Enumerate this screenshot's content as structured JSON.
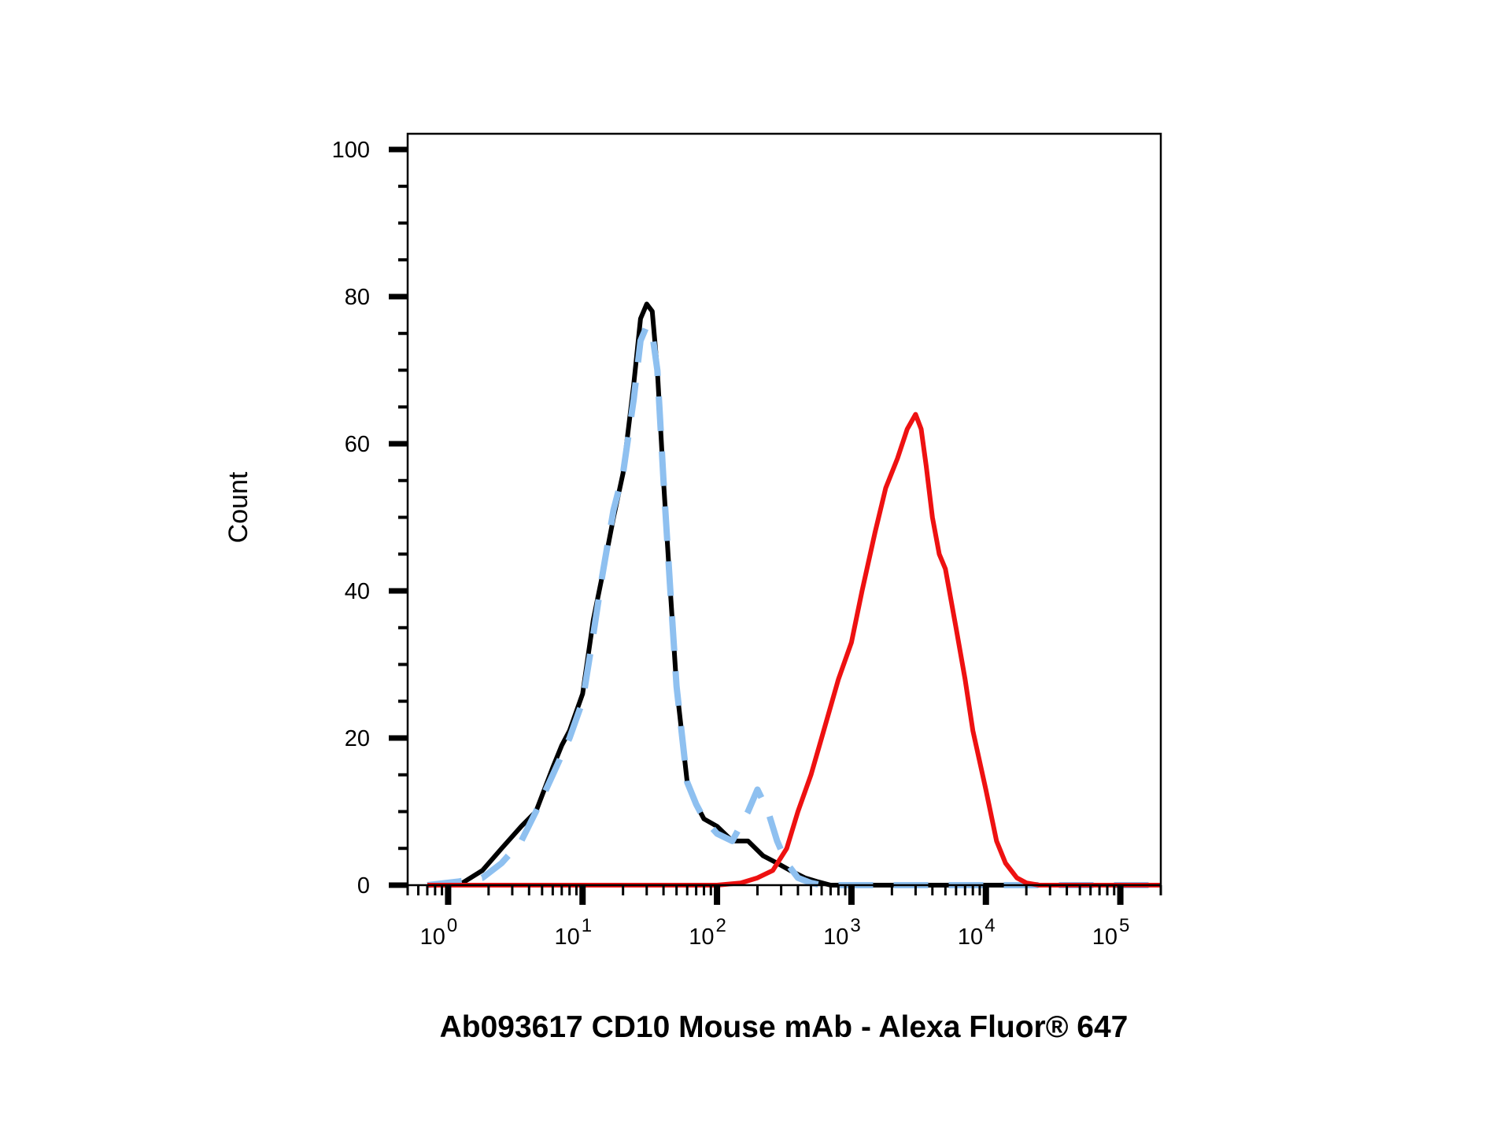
{
  "chart_data": {
    "type": "line",
    "title": "",
    "xlabel": "Ab093617 CD10 Mouse mAb - Alexa Fluor® 647",
    "ylabel": "Count",
    "xscale": "log",
    "xlim": [
      0.5,
      200000
    ],
    "ylim": [
      0,
      100
    ],
    "grid": false,
    "y_ticks": [
      0,
      20,
      40,
      60,
      80,
      100
    ],
    "x_ticks": [
      {
        "base": "10",
        "exp": "0",
        "value": 1
      },
      {
        "base": "10",
        "exp": "1",
        "value": 10
      },
      {
        "base": "10",
        "exp": "2",
        "value": 100
      },
      {
        "base": "10",
        "exp": "3",
        "value": 1000
      },
      {
        "base": "10",
        "exp": "4",
        "value": 10000
      },
      {
        "base": "10",
        "exp": "5",
        "value": 100000
      }
    ],
    "series": [
      {
        "color": "#000000",
        "style": "solid",
        "x": [
          0.7,
          1.2,
          1.8,
          2.5,
          3.5,
          4.5,
          6,
          7,
          8,
          10,
          12,
          14,
          17,
          20,
          24,
          27,
          30,
          33,
          36,
          40,
          45,
          50,
          60,
          70,
          80,
          100,
          130,
          170,
          220,
          280,
          350,
          450,
          550,
          700,
          1000,
          200000
        ],
        "y": [
          0,
          0,
          2,
          5,
          8,
          10,
          16,
          19,
          21,
          26,
          36,
          42,
          50,
          56,
          68,
          77,
          79,
          78,
          70,
          55,
          40,
          27,
          14,
          11,
          9,
          8,
          6,
          6,
          4,
          3,
          2,
          1,
          0.5,
          0,
          0,
          0
        ]
      },
      {
        "color": "#8ec0f0",
        "style": "dashed",
        "x": [
          0.7,
          1.2,
          1.8,
          2.5,
          3.5,
          4.5,
          6,
          8,
          10,
          12,
          14,
          17,
          20,
          24,
          27,
          30,
          33,
          36,
          40,
          45,
          50,
          60,
          70,
          80,
          100,
          130,
          170,
          200,
          240,
          280,
          330,
          400,
          500,
          600,
          800,
          1000,
          200000
        ],
        "y": [
          0,
          0.5,
          1,
          3,
          6,
          10,
          15,
          20,
          25,
          34,
          42,
          51,
          56,
          66,
          74,
          76,
          75,
          70,
          55,
          40,
          27,
          14,
          11,
          9,
          7,
          6,
          10,
          13,
          10,
          6,
          3,
          1,
          0.3,
          0,
          0,
          0,
          0
        ]
      },
      {
        "color": "#ee1111",
        "style": "solid",
        "x": [
          0.7,
          50,
          100,
          150,
          200,
          260,
          330,
          400,
          500,
          600,
          800,
          1000,
          1200,
          1500,
          1800,
          2200,
          2600,
          3000,
          3300,
          3600,
          4000,
          4500,
          5000,
          6000,
          7000,
          8000,
          10000,
          12000,
          14000,
          17000,
          20000,
          25000,
          30000,
          40000,
          60000,
          100000,
          200000
        ],
        "y": [
          0,
          0,
          0,
          0.3,
          1,
          2,
          5,
          10,
          15,
          20,
          28,
          33,
          40,
          48,
          54,
          58,
          62,
          64,
          62,
          57,
          50,
          45,
          43,
          35,
          28,
          21,
          13,
          6,
          3,
          1,
          0.3,
          0,
          0,
          0,
          0,
          0,
          0
        ]
      }
    ]
  }
}
